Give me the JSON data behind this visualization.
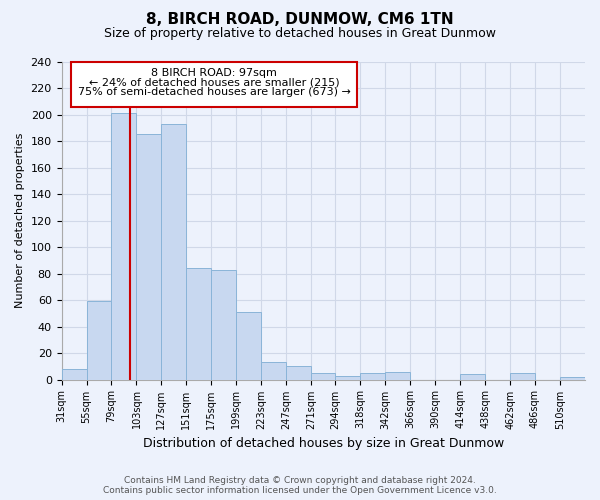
{
  "title": "8, BIRCH ROAD, DUNMOW, CM6 1TN",
  "subtitle": "Size of property relative to detached houses in Great Dunmow",
  "xlabel": "Distribution of detached houses by size in Great Dunmow",
  "ylabel": "Number of detached properties",
  "bin_labels": [
    "31sqm",
    "55sqm",
    "79sqm",
    "103sqm",
    "127sqm",
    "151sqm",
    "175sqm",
    "199sqm",
    "223sqm",
    "247sqm",
    "271sqm",
    "294sqm",
    "318sqm",
    "342sqm",
    "366sqm",
    "390sqm",
    "414sqm",
    "438sqm",
    "462sqm",
    "486sqm",
    "510sqm"
  ],
  "bin_nums": [
    31,
    55,
    79,
    103,
    127,
    151,
    175,
    199,
    223,
    247,
    271,
    294,
    318,
    342,
    366,
    390,
    414,
    438,
    462,
    486,
    510
  ],
  "bar_values": [
    8,
    59,
    201,
    185,
    193,
    84,
    83,
    51,
    13,
    10,
    5,
    3,
    5,
    6,
    0,
    0,
    4,
    0,
    5,
    0,
    2
  ],
  "bar_color": "#c8d8f0",
  "bar_edge_color": "#8ab4d8",
  "vline_x": 97,
  "vline_color": "#cc0000",
  "ann_line1": "8 BIRCH ROAD: 97sqm",
  "ann_line2": "← 24% of detached houses are smaller (215)",
  "ann_line3": "75% of semi-detached houses are larger (673) →",
  "ann_box_edge_color": "#cc0000",
  "ann_box_face_color": "#ffffff",
  "ylim": [
    0,
    240
  ],
  "yticks": [
    0,
    20,
    40,
    60,
    80,
    100,
    120,
    140,
    160,
    180,
    200,
    220,
    240
  ],
  "grid_color": "#d0d8e8",
  "bg_color": "#edf2fc",
  "title_fontsize": 11,
  "subtitle_fontsize": 9,
  "ylabel_fontsize": 8,
  "xlabel_fontsize": 9,
  "tick_fontsize": 7,
  "footer_line1": "Contains HM Land Registry data © Crown copyright and database right 2024.",
  "footer_line2": "Contains public sector information licensed under the Open Government Licence v3.0.",
  "footer_fontsize": 6.5,
  "footer_color": "#555555"
}
